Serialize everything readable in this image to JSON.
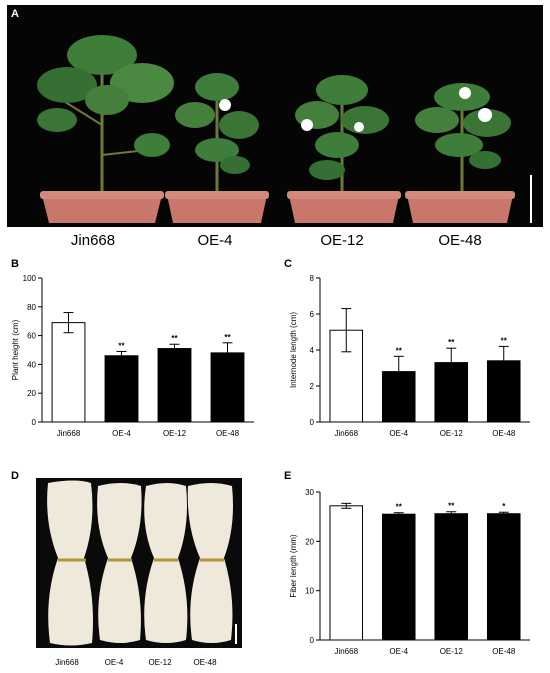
{
  "panels": {
    "A": "A",
    "B": "B",
    "C": "C",
    "D": "D",
    "E": "E"
  },
  "photo_a_labels": [
    "Jin668",
    "OE-4",
    "OE-12",
    "OE-48"
  ],
  "photo_d_labels": [
    "Jin668",
    "OE-4",
    "OE-12",
    "OE-48"
  ],
  "colors": {
    "control_bar": "#ffffff",
    "oe_bar": "#000000",
    "photo_background": "#050505",
    "pot": "#c8776a",
    "leaf": "#3f7d3a",
    "fiber": "#efe9dc"
  },
  "chart_data": [
    {
      "panel": "B",
      "type": "bar",
      "categories": [
        "Jin668",
        "OE-4",
        "OE-12",
        "OE-48"
      ],
      "values": [
        69,
        46,
        51,
        48
      ],
      "errors": [
        7,
        3,
        3,
        7
      ],
      "significance": [
        "",
        "**",
        "**",
        "**"
      ],
      "ylabel": "Plant height (cm)",
      "ylim": [
        0,
        100
      ],
      "yticks": [
        0,
        20,
        40,
        60,
        80,
        100
      ],
      "grid": false
    },
    {
      "panel": "C",
      "type": "bar",
      "categories": [
        "Jin668",
        "OE-4",
        "OE-12",
        "OE-48"
      ],
      "values": [
        5.1,
        2.8,
        3.3,
        3.4
      ],
      "errors": [
        1.2,
        0.85,
        0.8,
        0.8
      ],
      "significance": [
        "",
        "**",
        "**",
        "**"
      ],
      "ylabel": "Internode length (cm)",
      "ylim": [
        0,
        8
      ],
      "yticks": [
        0,
        2,
        4,
        6,
        8
      ],
      "grid": false
    },
    {
      "panel": "E",
      "type": "bar",
      "categories": [
        "Jin668",
        "OE-4",
        "OE-12",
        "OE-48"
      ],
      "values": [
        27.2,
        25.5,
        25.6,
        25.6
      ],
      "errors": [
        0.5,
        0.3,
        0.4,
        0.3
      ],
      "significance": [
        "",
        "**",
        "**",
        "*"
      ],
      "ylabel": "Fiber length (mm)",
      "ylim": [
        0,
        30
      ],
      "yticks": [
        0,
        10,
        20,
        30
      ],
      "grid": false
    }
  ]
}
